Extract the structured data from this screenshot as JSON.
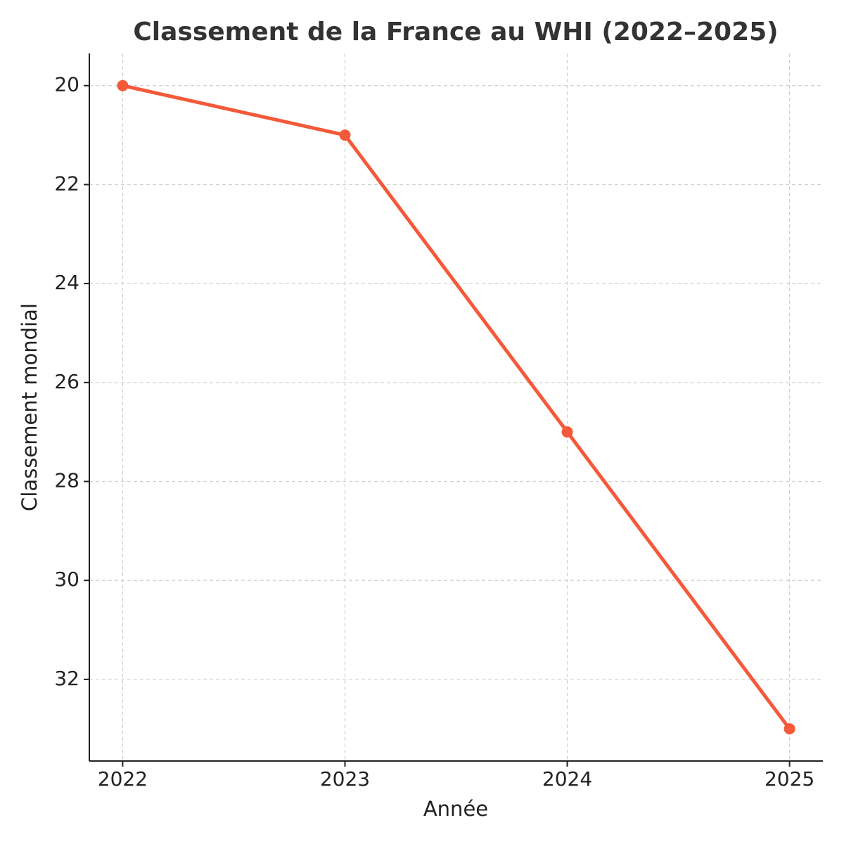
{
  "chart_data": {
    "type": "line",
    "title": "Classement de la France au WHI (2022–2025)",
    "x_label": "Année",
    "y_label": "Classement mondial",
    "x": [
      2022,
      2023,
      2024,
      2025
    ],
    "series": [
      {
        "name": "France",
        "color": "#f4593a",
        "values": [
          20,
          21,
          27,
          33
        ]
      }
    ],
    "xlim": [
      2021.85,
      2025.15
    ],
    "xticks": [
      2022,
      2023,
      2024,
      2025
    ],
    "ylim": [
      19.35,
      33.65
    ],
    "yticks": [
      20,
      22,
      24,
      26,
      28,
      30,
      32
    ],
    "y_inverted": true,
    "grid": true
  }
}
